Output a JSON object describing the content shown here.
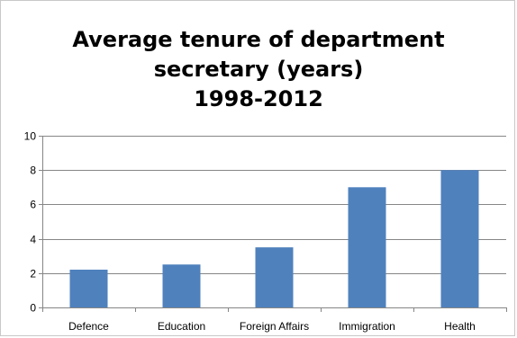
{
  "chart_data": {
    "type": "bar",
    "title_lines": [
      "Average tenure of department",
      "secretary (years)",
      "1998-2012"
    ],
    "categories": [
      "Defence",
      "Education",
      "Foreign Affairs",
      "Immigration",
      "Health"
    ],
    "values": [
      2.2,
      2.5,
      3.5,
      7,
      8
    ],
    "ylim": [
      0,
      10
    ],
    "yticks": [
      "0",
      "2",
      "4",
      "6",
      "8",
      "10"
    ],
    "ytick_values": [
      0,
      2,
      4,
      6,
      8,
      10
    ],
    "grid": true,
    "legend": "none",
    "colors": {
      "bar": "#4f81bd",
      "grid": "#868686",
      "axis": "#868686"
    }
  }
}
